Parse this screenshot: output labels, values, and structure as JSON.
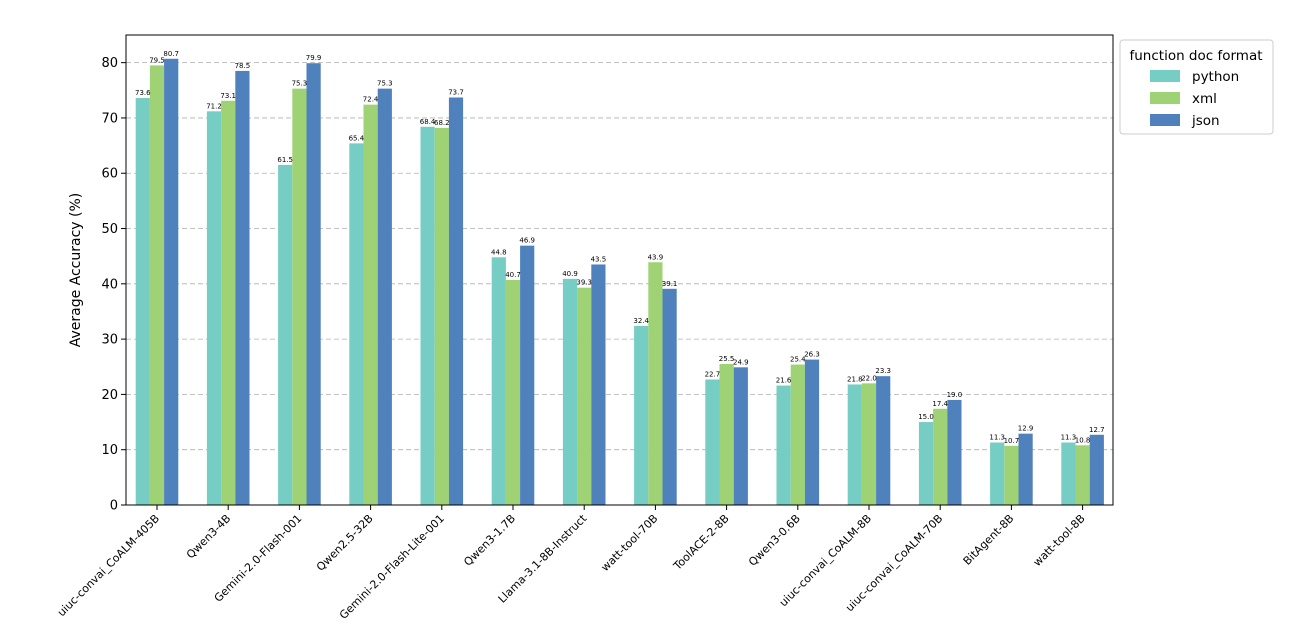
{
  "chart_data": {
    "type": "bar",
    "title": "",
    "xlabel": "",
    "ylabel": "Average Accuracy (%)",
    "ylim": [
      0,
      85
    ],
    "yticks": [
      0,
      10,
      20,
      30,
      40,
      50,
      60,
      70,
      80
    ],
    "grid": "y-dashed",
    "legend_title": "function doc format",
    "legend_position": "outside-top-right",
    "categories": [
      "uiuc-convai_CoALM-405B",
      "Qwen3-4B",
      "Gemini-2.0-Flash-001",
      "Qwen2.5-32B",
      "Gemini-2.0-Flash-Lite-001",
      "Qwen3-1.7B",
      "Llama-3.1-8B-Instruct",
      "watt-tool-70B",
      "ToolACE-2-8B",
      "Qwen3-0.6B",
      "uiuc-convai_CoALM-8B",
      "uiuc-convai_CoALM-70B",
      "BitAgent-8B",
      "watt-tool-8B"
    ],
    "series": [
      {
        "name": "python",
        "color": "#76cdc4",
        "values": [
          73.6,
          71.2,
          61.5,
          65.4,
          68.4,
          44.8,
          40.9,
          32.4,
          22.7,
          21.6,
          21.8,
          15.0,
          11.3,
          11.3
        ]
      },
      {
        "name": "xml",
        "color": "#9fd275",
        "values": [
          79.5,
          73.1,
          75.3,
          72.4,
          68.2,
          40.7,
          39.3,
          43.9,
          25.5,
          25.4,
          22.0,
          17.4,
          10.7,
          10.8
        ]
      },
      {
        "name": "json",
        "color": "#4f81bd",
        "values": [
          80.7,
          78.5,
          79.9,
          75.3,
          73.7,
          46.9,
          43.5,
          39.1,
          24.9,
          26.3,
          23.3,
          19.0,
          12.9,
          12.7
        ]
      }
    ]
  }
}
